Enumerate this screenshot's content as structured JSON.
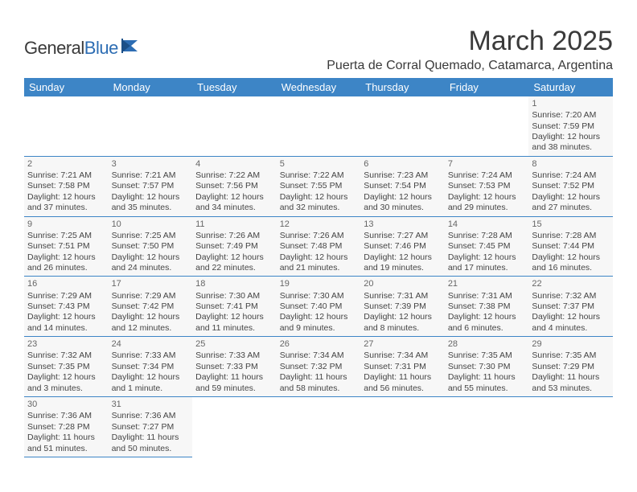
{
  "brand": {
    "general": "General",
    "blue": "Blue"
  },
  "title": "March 2025",
  "location": "Puerta de Corral Quemado, Catamarca, Argentina",
  "colors": {
    "header_bg": "#3d85c6",
    "header_fg": "#ffffff",
    "cell_bg": "#f7f7f7",
    "border": "#3d85c6"
  },
  "weekdays": [
    "Sunday",
    "Monday",
    "Tuesday",
    "Wednesday",
    "Thursday",
    "Friday",
    "Saturday"
  ],
  "weeks": [
    [
      null,
      null,
      null,
      null,
      null,
      null,
      {
        "n": "1",
        "sr": "Sunrise: 7:20 AM",
        "ss": "Sunset: 7:59 PM",
        "dl1": "Daylight: 12 hours",
        "dl2": "and 38 minutes."
      }
    ],
    [
      {
        "n": "2",
        "sr": "Sunrise: 7:21 AM",
        "ss": "Sunset: 7:58 PM",
        "dl1": "Daylight: 12 hours",
        "dl2": "and 37 minutes."
      },
      {
        "n": "3",
        "sr": "Sunrise: 7:21 AM",
        "ss": "Sunset: 7:57 PM",
        "dl1": "Daylight: 12 hours",
        "dl2": "and 35 minutes."
      },
      {
        "n": "4",
        "sr": "Sunrise: 7:22 AM",
        "ss": "Sunset: 7:56 PM",
        "dl1": "Daylight: 12 hours",
        "dl2": "and 34 minutes."
      },
      {
        "n": "5",
        "sr": "Sunrise: 7:22 AM",
        "ss": "Sunset: 7:55 PM",
        "dl1": "Daylight: 12 hours",
        "dl2": "and 32 minutes."
      },
      {
        "n": "6",
        "sr": "Sunrise: 7:23 AM",
        "ss": "Sunset: 7:54 PM",
        "dl1": "Daylight: 12 hours",
        "dl2": "and 30 minutes."
      },
      {
        "n": "7",
        "sr": "Sunrise: 7:24 AM",
        "ss": "Sunset: 7:53 PM",
        "dl1": "Daylight: 12 hours",
        "dl2": "and 29 minutes."
      },
      {
        "n": "8",
        "sr": "Sunrise: 7:24 AM",
        "ss": "Sunset: 7:52 PM",
        "dl1": "Daylight: 12 hours",
        "dl2": "and 27 minutes."
      }
    ],
    [
      {
        "n": "9",
        "sr": "Sunrise: 7:25 AM",
        "ss": "Sunset: 7:51 PM",
        "dl1": "Daylight: 12 hours",
        "dl2": "and 26 minutes."
      },
      {
        "n": "10",
        "sr": "Sunrise: 7:25 AM",
        "ss": "Sunset: 7:50 PM",
        "dl1": "Daylight: 12 hours",
        "dl2": "and 24 minutes."
      },
      {
        "n": "11",
        "sr": "Sunrise: 7:26 AM",
        "ss": "Sunset: 7:49 PM",
        "dl1": "Daylight: 12 hours",
        "dl2": "and 22 minutes."
      },
      {
        "n": "12",
        "sr": "Sunrise: 7:26 AM",
        "ss": "Sunset: 7:48 PM",
        "dl1": "Daylight: 12 hours",
        "dl2": "and 21 minutes."
      },
      {
        "n": "13",
        "sr": "Sunrise: 7:27 AM",
        "ss": "Sunset: 7:46 PM",
        "dl1": "Daylight: 12 hours",
        "dl2": "and 19 minutes."
      },
      {
        "n": "14",
        "sr": "Sunrise: 7:28 AM",
        "ss": "Sunset: 7:45 PM",
        "dl1": "Daylight: 12 hours",
        "dl2": "and 17 minutes."
      },
      {
        "n": "15",
        "sr": "Sunrise: 7:28 AM",
        "ss": "Sunset: 7:44 PM",
        "dl1": "Daylight: 12 hours",
        "dl2": "and 16 minutes."
      }
    ],
    [
      {
        "n": "16",
        "sr": "Sunrise: 7:29 AM",
        "ss": "Sunset: 7:43 PM",
        "dl1": "Daylight: 12 hours",
        "dl2": "and 14 minutes."
      },
      {
        "n": "17",
        "sr": "Sunrise: 7:29 AM",
        "ss": "Sunset: 7:42 PM",
        "dl1": "Daylight: 12 hours",
        "dl2": "and 12 minutes."
      },
      {
        "n": "18",
        "sr": "Sunrise: 7:30 AM",
        "ss": "Sunset: 7:41 PM",
        "dl1": "Daylight: 12 hours",
        "dl2": "and 11 minutes."
      },
      {
        "n": "19",
        "sr": "Sunrise: 7:30 AM",
        "ss": "Sunset: 7:40 PM",
        "dl1": "Daylight: 12 hours",
        "dl2": "and 9 minutes."
      },
      {
        "n": "20",
        "sr": "Sunrise: 7:31 AM",
        "ss": "Sunset: 7:39 PM",
        "dl1": "Daylight: 12 hours",
        "dl2": "and 8 minutes."
      },
      {
        "n": "21",
        "sr": "Sunrise: 7:31 AM",
        "ss": "Sunset: 7:38 PM",
        "dl1": "Daylight: 12 hours",
        "dl2": "and 6 minutes."
      },
      {
        "n": "22",
        "sr": "Sunrise: 7:32 AM",
        "ss": "Sunset: 7:37 PM",
        "dl1": "Daylight: 12 hours",
        "dl2": "and 4 minutes."
      }
    ],
    [
      {
        "n": "23",
        "sr": "Sunrise: 7:32 AM",
        "ss": "Sunset: 7:35 PM",
        "dl1": "Daylight: 12 hours",
        "dl2": "and 3 minutes."
      },
      {
        "n": "24",
        "sr": "Sunrise: 7:33 AM",
        "ss": "Sunset: 7:34 PM",
        "dl1": "Daylight: 12 hours",
        "dl2": "and 1 minute."
      },
      {
        "n": "25",
        "sr": "Sunrise: 7:33 AM",
        "ss": "Sunset: 7:33 PM",
        "dl1": "Daylight: 11 hours",
        "dl2": "and 59 minutes."
      },
      {
        "n": "26",
        "sr": "Sunrise: 7:34 AM",
        "ss": "Sunset: 7:32 PM",
        "dl1": "Daylight: 11 hours",
        "dl2": "and 58 minutes."
      },
      {
        "n": "27",
        "sr": "Sunrise: 7:34 AM",
        "ss": "Sunset: 7:31 PM",
        "dl1": "Daylight: 11 hours",
        "dl2": "and 56 minutes."
      },
      {
        "n": "28",
        "sr": "Sunrise: 7:35 AM",
        "ss": "Sunset: 7:30 PM",
        "dl1": "Daylight: 11 hours",
        "dl2": "and 55 minutes."
      },
      {
        "n": "29",
        "sr": "Sunrise: 7:35 AM",
        "ss": "Sunset: 7:29 PM",
        "dl1": "Daylight: 11 hours",
        "dl2": "and 53 minutes."
      }
    ],
    [
      {
        "n": "30",
        "sr": "Sunrise: 7:36 AM",
        "ss": "Sunset: 7:28 PM",
        "dl1": "Daylight: 11 hours",
        "dl2": "and 51 minutes."
      },
      {
        "n": "31",
        "sr": "Sunrise: 7:36 AM",
        "ss": "Sunset: 7:27 PM",
        "dl1": "Daylight: 11 hours",
        "dl2": "and 50 minutes."
      },
      null,
      null,
      null,
      null,
      null
    ]
  ]
}
